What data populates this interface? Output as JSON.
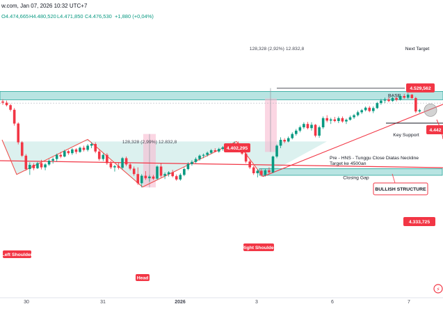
{
  "header": {
    "title": "w.com, Jan 07, 2026 10:32 UTC+7",
    "ohlc": {
      "open": "O4.474,665",
      "high": "H4.480,520",
      "low": "L4.471,850",
      "close": "C4.476,530",
      "change": "+1,880 (+0,04%)"
    }
  },
  "colors": {
    "bull": "#089981",
    "bear": "#f23645",
    "base_zone": "#7ececa",
    "shade": "#b2dfdb",
    "measure": "#f8bbd0",
    "trendline": "#f23645"
  },
  "chart_data": {
    "type": "candlestick",
    "x_tick_labels": [
      "30",
      "31",
      "2026",
      "3",
      "6",
      "7"
    ],
    "ohlc": [
      [
        4498,
        4503,
        4490,
        4495
      ],
      [
        4495,
        4500,
        4486,
        4489
      ],
      [
        4489,
        4492,
        4474,
        4478
      ],
      [
        4478,
        4482,
        4440,
        4445
      ],
      [
        4445,
        4448,
        4395,
        4400
      ],
      [
        4400,
        4403,
        4365,
        4368
      ],
      [
        4368,
        4372,
        4332,
        4336
      ],
      [
        4336,
        4352,
        4322,
        4346
      ],
      [
        4346,
        4350,
        4333,
        4338
      ],
      [
        4338,
        4353,
        4336,
        4350
      ],
      [
        4350,
        4358,
        4335,
        4340
      ],
      [
        4340,
        4350,
        4333,
        4347
      ],
      [
        4347,
        4360,
        4344,
        4356
      ],
      [
        4356,
        4364,
        4349,
        4360
      ],
      [
        4360,
        4373,
        4354,
        4370
      ],
      [
        4370,
        4377,
        4362,
        4366
      ],
      [
        4366,
        4382,
        4364,
        4379
      ],
      [
        4379,
        4382,
        4370,
        4374
      ],
      [
        4374,
        4386,
        4370,
        4383
      ],
      [
        4383,
        4386,
        4372,
        4377
      ],
      [
        4377,
        4390,
        4375,
        4387
      ],
      [
        4387,
        4392,
        4378,
        4382
      ],
      [
        4382,
        4396,
        4378,
        4392
      ],
      [
        4392,
        4400,
        4386,
        4396
      ],
      [
        4396,
        4400,
        4374,
        4378
      ],
      [
        4378,
        4383,
        4356,
        4360
      ],
      [
        4360,
        4374,
        4355,
        4370
      ],
      [
        4370,
        4374,
        4346,
        4350
      ],
      [
        4350,
        4356,
        4336,
        4340
      ],
      [
        4340,
        4346,
        4330,
        4343
      ],
      [
        4343,
        4352,
        4335,
        4339
      ],
      [
        4339,
        4365,
        4335,
        4362
      ],
      [
        4362,
        4366,
        4343,
        4347
      ],
      [
        4347,
        4350,
        4333,
        4337
      ],
      [
        4337,
        4342,
        4320,
        4324
      ],
      [
        4324,
        4340,
        4298,
        4302
      ],
      [
        4302,
        4324,
        4292,
        4320
      ],
      [
        4320,
        4331,
        4310,
        4314
      ],
      [
        4314,
        4322,
        4306,
        4318
      ],
      [
        4318,
        4322,
        4310,
        4313
      ],
      [
        4313,
        4345,
        4310,
        4342
      ],
      [
        4342,
        4350,
        4316,
        4320
      ],
      [
        4320,
        4328,
        4312,
        4324
      ],
      [
        4324,
        4331,
        4318,
        4328
      ],
      [
        4328,
        4334,
        4316,
        4319
      ],
      [
        4319,
        4323,
        4308,
        4311
      ],
      [
        4311,
        4326,
        4308,
        4322
      ],
      [
        4322,
        4340,
        4319,
        4336
      ],
      [
        4336,
        4352,
        4333,
        4348
      ],
      [
        4348,
        4357,
        4344,
        4353
      ],
      [
        4353,
        4364,
        4350,
        4360
      ],
      [
        4360,
        4371,
        4356,
        4368
      ],
      [
        4368,
        4373,
        4362,
        4370
      ],
      [
        4370,
        4378,
        4366,
        4375
      ],
      [
        4375,
        4384,
        4372,
        4381
      ],
      [
        4381,
        4386,
        4376,
        4378
      ],
      [
        4378,
        4387,
        4375,
        4384
      ],
      [
        4384,
        4391,
        4380,
        4388
      ],
      [
        4388,
        4394,
        4384,
        4390
      ],
      [
        4390,
        4398,
        4386,
        4395
      ],
      [
        4395,
        4402,
        4391,
        4398
      ],
      [
        4398,
        4402,
        4388,
        4392
      ],
      [
        4392,
        4395,
        4370,
        4373
      ],
      [
        4373,
        4377,
        4350,
        4354
      ],
      [
        4354,
        4358,
        4336,
        4340
      ],
      [
        4340,
        4344,
        4322,
        4326
      ],
      [
        4326,
        4336,
        4316,
        4332
      ],
      [
        4332,
        4337,
        4318,
        4322
      ],
      [
        4322,
        4336,
        4318,
        4333
      ],
      [
        4333,
        4340,
        4324,
        4328
      ],
      [
        4328,
        4368,
        4326,
        4366
      ],
      [
        4366,
        4395,
        4362,
        4392
      ],
      [
        4392,
        4412,
        4386,
        4406
      ],
      [
        4406,
        4410,
        4398,
        4402
      ],
      [
        4402,
        4414,
        4400,
        4410
      ],
      [
        4410,
        4424,
        4407,
        4420
      ],
      [
        4420,
        4432,
        4416,
        4428
      ],
      [
        4428,
        4440,
        4424,
        4436
      ],
      [
        4436,
        4448,
        4432,
        4444
      ],
      [
        4444,
        4449,
        4431,
        4434
      ],
      [
        4434,
        4448,
        4428,
        4442
      ],
      [
        4442,
        4444,
        4412,
        4416
      ],
      [
        4416,
        4440,
        4411,
        4436
      ],
      [
        4436,
        4462,
        4432,
        4458
      ],
      [
        4458,
        4465,
        4448,
        4452
      ],
      [
        4452,
        4459,
        4444,
        4455
      ],
      [
        4455,
        4461,
        4448,
        4451
      ],
      [
        4451,
        4462,
        4446,
        4458
      ],
      [
        4458,
        4462,
        4447,
        4450
      ],
      [
        4450,
        4457,
        4444,
        4454
      ],
      [
        4454,
        4464,
        4452,
        4460
      ],
      [
        4460,
        4468,
        4456,
        4465
      ],
      [
        4465,
        4476,
        4462,
        4472
      ],
      [
        4472,
        4480,
        4468,
        4477
      ],
      [
        4477,
        4486,
        4474,
        4483
      ],
      [
        4483,
        4487,
        4472,
        4475
      ],
      [
        4475,
        4486,
        4470,
        4482
      ],
      [
        4482,
        4497,
        4480,
        4494
      ],
      [
        4494,
        4504,
        4490,
        4500
      ],
      [
        4500,
        4507,
        4494,
        4503
      ],
      [
        4503,
        4508,
        4496,
        4499
      ],
      [
        4499,
        4510,
        4497,
        4506
      ],
      [
        4506,
        4510,
        4498,
        4502
      ],
      [
        4502,
        4515,
        4500,
        4511
      ],
      [
        4511,
        4516,
        4504,
        4507
      ],
      [
        4507,
        4518,
        4504,
        4514
      ],
      [
        4514,
        4516,
        4504,
        4506
      ],
      [
        4506,
        4509,
        4470,
        4474
      ],
      [
        4474,
        4480,
        4471,
        4477
      ]
    ],
    "y_axis_labels": [
      {
        "text": "4.529,562",
        "value": 4529.562,
        "color": "#f23645"
      },
      {
        "text": "4.442",
        "value": 4442,
        "color": "#f23645"
      },
      {
        "text": "4.333,725",
        "value": 4333.725,
        "color": "#f23645"
      }
    ],
    "zones": {
      "base": {
        "label": "BASE",
        "top": 4522,
        "bottom": 4502
      },
      "closing_gap": {
        "label": "Closing Gap",
        "top": 4337,
        "bottom": 4321
      }
    },
    "measurements": [
      {
        "label": "128,328 (2,99%) 12.832,8"
      },
      {
        "label": "128,328 (2,92%) 12.832,8"
      }
    ],
    "annotations": {
      "left_shoulder": "Left Shoulder",
      "head": "Head",
      "right_shoulder": "Right Shoulder",
      "neckline_price": "4.402,295",
      "next_target": "Next Target",
      "key_support": "Key Support",
      "neckline_note_1": "Pre - HNS - Tunggu Close Diatas Neckline",
      "neckline_note_2": "Target ke 4500an",
      "bullish_structure": "BULLISH STRUCTURE"
    }
  }
}
